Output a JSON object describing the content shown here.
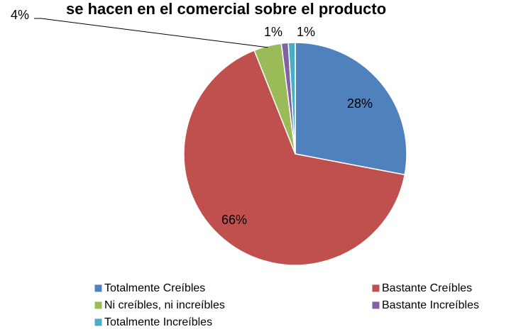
{
  "chart_data": {
    "type": "pie",
    "title": "se hacen en el comercial sobre el producto",
    "categories": [
      "Totalmente Creíbles",
      "Bastante Creíbles",
      "Ni creíbles, ni increíbles",
      "Bastante Increíbles",
      "Totalmente Increíbles"
    ],
    "values": [
      28,
      66,
      4,
      1,
      1
    ],
    "value_labels": [
      "28%",
      "66%",
      "4%",
      "1%",
      "1%"
    ],
    "colors": [
      "#4f81bd",
      "#c0504d",
      "#9bbb59",
      "#8064a2",
      "#4bacc6"
    ],
    "legend": "bottom"
  }
}
